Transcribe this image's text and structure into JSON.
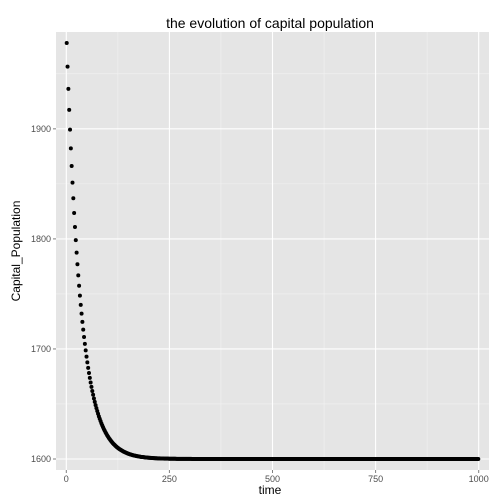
{
  "chart_data": {
    "type": "scatter",
    "title": "the evolution of capital population",
    "xlabel": "time",
    "ylabel": "Capital_Population",
    "xlim": [
      -25,
      1025
    ],
    "ylim": [
      1590,
      1988
    ],
    "x_ticks": [
      0,
      250,
      500,
      750,
      1000
    ],
    "y_ticks": [
      1600,
      1700,
      1800,
      1900
    ],
    "x_tick_labels": [
      "0",
      "250",
      "500",
      "750",
      "1000"
    ],
    "y_tick_labels": [
      "1600",
      "1700",
      "1800",
      "1900"
    ],
    "grid": true,
    "legend": "none",
    "series": [
      {
        "model": "exponential-decay",
        "x_start": 1,
        "x_end": 1000,
        "x_step": 2,
        "y0": 1978,
        "asymptote": 1600,
        "rate": 0.0292,
        "sample_points": [
          {
            "x": 1,
            "y": 1978
          },
          {
            "x": 25,
            "y": 1790
          },
          {
            "x": 50,
            "y": 1688
          },
          {
            "x": 100,
            "y": 1621
          },
          {
            "x": 150,
            "y": 1605
          },
          {
            "x": 250,
            "y": 1600
          },
          {
            "x": 500,
            "y": 1600
          },
          {
            "x": 750,
            "y": 1600
          },
          {
            "x": 1000,
            "y": 1600
          }
        ]
      }
    ]
  },
  "colors": {
    "panel_background": "#e5e5e5",
    "major_grid": "#ffffff",
    "minor_grid": "#f2f2f2",
    "points": "#000000",
    "tick_text": "#4d4d4d"
  }
}
